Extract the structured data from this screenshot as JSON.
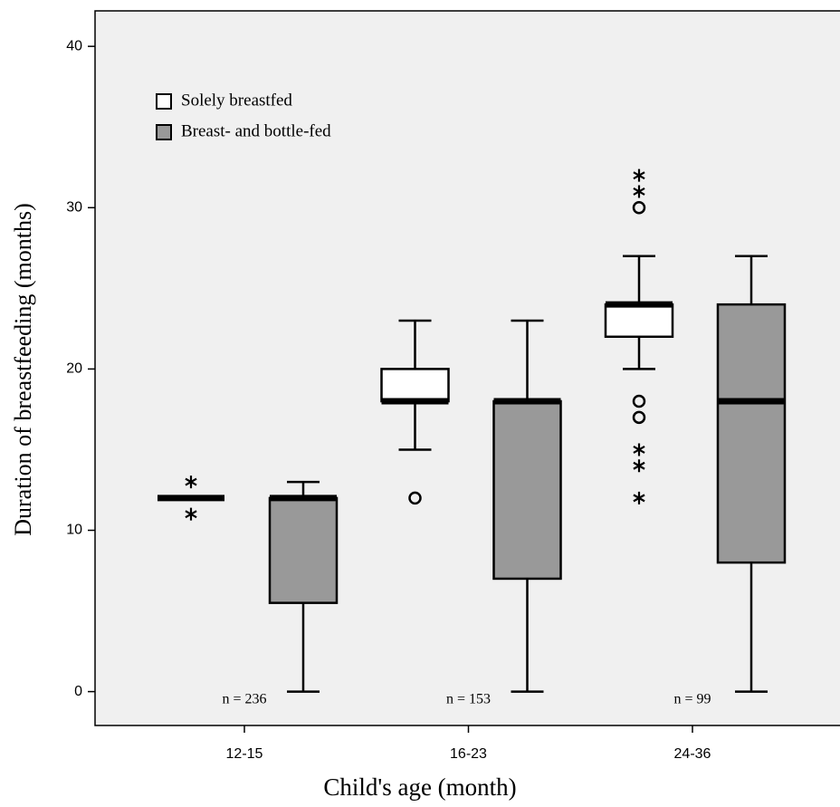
{
  "chart_data": {
    "type": "boxplot",
    "x_label": "Child's age (month)",
    "y_label": "Duration of breastfeeding (months)",
    "categories": [
      "12-15",
      "16-23",
      "24-36"
    ],
    "n_labels": [
      "n = 236",
      "n = 153",
      "n = 99"
    ],
    "ylim": [
      -2.1,
      42.2
    ],
    "yticks": [
      0,
      10,
      20,
      30,
      40
    ],
    "background": "#f0f0f0",
    "series": [
      {
        "name": "Solely breastfed",
        "color": "#ffffff",
        "boxes": [
          {
            "min": 12,
            "q1": 12,
            "median": 12,
            "q3": 12,
            "max": 12,
            "outliers": [],
            "extremes": [
              13,
              11
            ]
          },
          {
            "min": 15,
            "q1": 18,
            "median": 18,
            "q3": 20,
            "max": 23,
            "outliers": [
              12
            ],
            "extremes": []
          },
          {
            "min": 20,
            "q1": 22,
            "median": 24,
            "q3": 24,
            "max": 27,
            "outliers": [
              30,
              18,
              17
            ],
            "extremes": [
              32,
              31,
              15,
              14,
              12
            ]
          }
        ]
      },
      {
        "name": "Breast- and bottle-fed",
        "color": "#999999",
        "boxes": [
          {
            "min": 0,
            "q1": 5.5,
            "median": 12,
            "q3": 12,
            "max": 13,
            "outliers": [],
            "extremes": []
          },
          {
            "min": 0,
            "q1": 7,
            "median": 18,
            "q3": 18,
            "max": 23,
            "outliers": [],
            "extremes": []
          },
          {
            "min": 0,
            "q1": 8,
            "median": 18,
            "q3": 24,
            "max": 27,
            "outliers": [],
            "extremes": []
          }
        ]
      }
    ]
  }
}
